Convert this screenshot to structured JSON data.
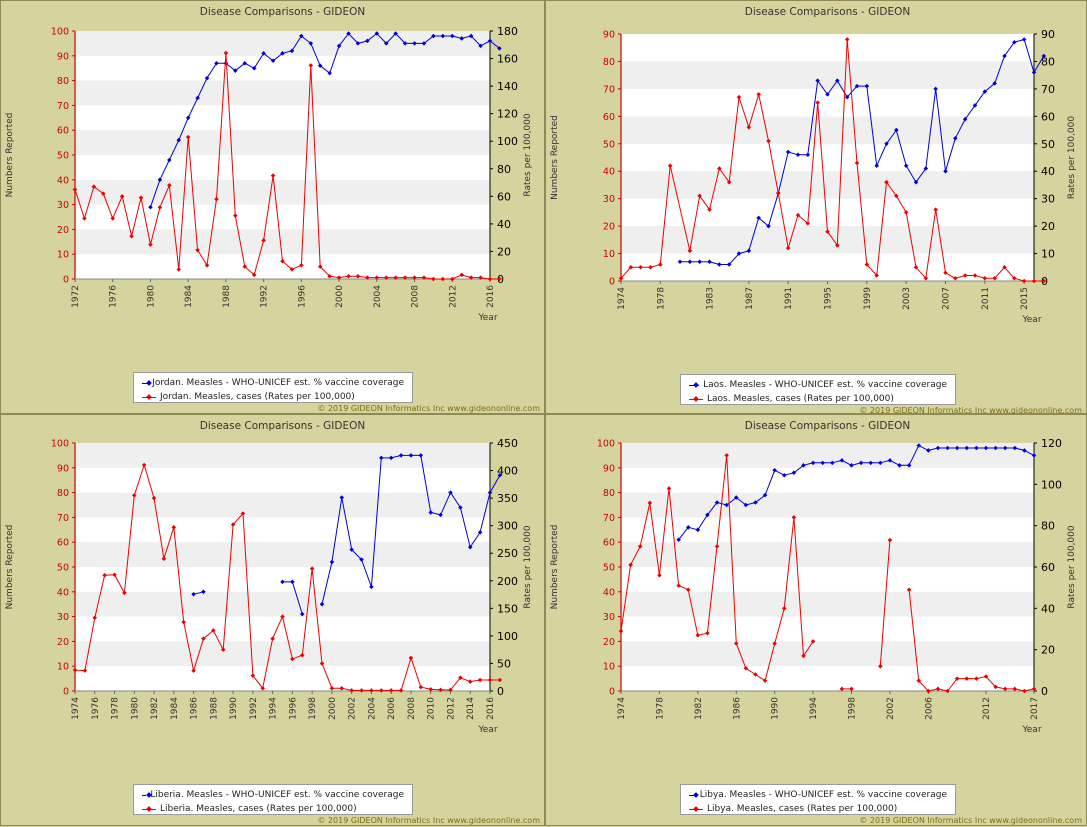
{
  "app": {
    "copyright": "© 2019 GIDEON Informatics Inc www.gideononline.com"
  },
  "colors": {
    "coverage": "#0000dd",
    "cases": "#ee0000",
    "grid_band": "#efefef",
    "background": "#d6d49e"
  },
  "chart_data": [
    {
      "type": "line",
      "title": "Disease Comparisons - GIDEON",
      "xlabel": "Year",
      "ylabel": "Numbers Reported",
      "y2label": "Rates per 100,000",
      "xlim": [
        1972,
        2016
      ],
      "xticks": [
        "1972",
        "1976",
        "1980",
        "1984",
        "1988",
        "1992",
        "1996",
        "2000",
        "2004",
        "2008",
        "2012",
        "2016"
      ],
      "ylim": [
        0,
        100
      ],
      "yticks": [
        "0",
        "10",
        "20",
        "30",
        "40",
        "50",
        "60",
        "70",
        "80",
        "90",
        "100"
      ],
      "y2lim": [
        0,
        180
      ],
      "y2ticks": [
        "0",
        "20",
        "40",
        "60",
        "80",
        "100",
        "120",
        "140",
        "160",
        "180"
      ],
      "series": [
        {
          "name": "Jordan. Measles - WHO-UNICEF est. % vaccine coverage",
          "color": "#0000dd",
          "axis": "left",
          "x": [
            1980,
            1981,
            1982,
            1983,
            1984,
            1985,
            1986,
            1987,
            1988,
            1989,
            1990,
            1991,
            1992,
            1993,
            1994,
            1995,
            1996,
            1997,
            1998,
            1999,
            2000,
            2001,
            2002,
            2003,
            2004,
            2005,
            2006,
            2007,
            2008,
            2009,
            2010,
            2011,
            2012,
            2013,
            2014,
            2015,
            2016,
            2017
          ],
          "values": [
            29,
            40,
            48,
            56,
            65,
            73,
            81,
            87,
            87,
            84,
            87,
            85,
            91,
            88,
            91,
            92,
            98,
            95,
            86,
            83,
            94,
            99,
            95,
            96,
            99,
            95,
            99,
            95,
            95,
            95,
            98,
            98,
            98,
            97,
            98,
            94,
            96,
            93
          ]
        },
        {
          "name": "Jordan. Measles, cases (Rates per 100,000)",
          "color": "#ee0000",
          "axis": "right",
          "x": [
            1972,
            1973,
            1974,
            1975,
            1976,
            1977,
            1978,
            1979,
            1980,
            1981,
            1982,
            1983,
            1984,
            1985,
            1986,
            1987,
            1988,
            1989,
            1990,
            1991,
            1992,
            1993,
            1994,
            1995,
            1996,
            1997,
            1998,
            1999,
            2000,
            2001,
            2002,
            2003,
            2004,
            2005,
            2006,
            2007,
            2008,
            2009,
            2010,
            2011,
            2012,
            2013,
            2014,
            2015,
            2016,
            2017
          ],
          "values": [
            65,
            44,
            67,
            62,
            44,
            60,
            31,
            59,
            25,
            52,
            68,
            7,
            103,
            21,
            10,
            58,
            164,
            46,
            9,
            3,
            28,
            75,
            13,
            7,
            10,
            155,
            9,
            2,
            1,
            2,
            2,
            1,
            1,
            1,
            1,
            1,
            1,
            1,
            0,
            0,
            0,
            3,
            1,
            1,
            0,
            0
          ]
        }
      ]
    },
    {
      "type": "line",
      "title": "Disease Comparisons - GIDEON",
      "xlabel": "Year",
      "ylabel": "Numbers Reported",
      "y2label": "Rates per 100,000",
      "xlim": [
        1974,
        2016
      ],
      "xticks": [
        "1974",
        "1978",
        "1983",
        "1987",
        "1991",
        "1995",
        "1999",
        "2003",
        "2007",
        "2011",
        "2015"
      ],
      "ylim": [
        0,
        90
      ],
      "yticks": [
        "0",
        "10",
        "20",
        "30",
        "40",
        "50",
        "60",
        "70",
        "80",
        "90"
      ],
      "y2lim": [
        0,
        90
      ],
      "y2ticks": [
        "0",
        "10",
        "20",
        "30",
        "40",
        "50",
        "60",
        "70",
        "80",
        "90"
      ],
      "series": [
        {
          "name": "Laos. Measles - WHO-UNICEF est. % vaccine coverage",
          "color": "#0000dd",
          "axis": "left",
          "x": [
            1980,
            1981,
            1982,
            1983,
            1984,
            1985,
            1986,
            1987,
            1988,
            1989,
            1990,
            1991,
            1992,
            1993,
            1994,
            1995,
            1996,
            1997,
            1998,
            1999,
            2000,
            2001,
            2002,
            2003,
            2004,
            2005,
            2006,
            2007,
            2008,
            2009,
            2010,
            2011,
            2012,
            2013,
            2014,
            2015,
            2016,
            2017
          ],
          "values": [
            7,
            7,
            7,
            7,
            6,
            6,
            10,
            11,
            23,
            20,
            32,
            47,
            46,
            46,
            73,
            68,
            73,
            67,
            71,
            71,
            42,
            50,
            55,
            42,
            36,
            41,
            70,
            40,
            52,
            59,
            64,
            69,
            72,
            82,
            87,
            88,
            76,
            82
          ]
        },
        {
          "name": "Laos. Measles, cases (Rates per 100,000)",
          "color": "#ee0000",
          "axis": "right",
          "x": [
            1974,
            1975,
            1976,
            1977,
            1978,
            1979,
            1981,
            1982,
            1983,
            1984,
            1985,
            1986,
            1987,
            1988,
            1989,
            1990,
            1991,
            1992,
            1993,
            1994,
            1995,
            1996,
            1997,
            1998,
            1999,
            2000,
            2001,
            2002,
            2003,
            2004,
            2005,
            2006,
            2007,
            2008,
            2009,
            2010,
            2011,
            2012,
            2013,
            2014,
            2015,
            2016,
            2017
          ],
          "values": [
            1,
            5,
            5,
            5,
            6,
            42,
            11,
            31,
            26,
            41,
            36,
            67,
            56,
            68,
            51,
            32,
            12,
            24,
            21,
            65,
            18,
            13,
            88,
            43,
            6,
            2,
            36,
            31,
            25,
            5,
            1,
            26,
            3,
            1,
            2,
            2,
            1,
            1,
            5,
            1,
            0,
            0,
            0
          ]
        }
      ]
    },
    {
      "type": "line",
      "title": "Disease Comparisons - GIDEON",
      "xlabel": "Year",
      "ylabel": "Numbers Reported",
      "y2label": "Rates per 100,000",
      "xlim": [
        1974,
        2016
      ],
      "xticks": [
        "1974",
        "1978",
        "1982",
        "1986",
        "1990",
        "1994",
        "1998",
        "2002",
        "2006",
        "2010",
        "2014"
      ],
      "xticks_extra": [
        "1976",
        "1980",
        "1984",
        "1988",
        "1992",
        "1996",
        "2000",
        "2004",
        "2008",
        "2012",
        "2016"
      ],
      "ylim": [
        0,
        100
      ],
      "yticks": [
        "0",
        "10",
        "20",
        "30",
        "40",
        "50",
        "60",
        "70",
        "80",
        "90",
        "100"
      ],
      "y2lim": [
        0,
        450
      ],
      "y2ticks": [
        "0",
        "50",
        "100",
        "150",
        "200",
        "250",
        "300",
        "350",
        "400",
        "450"
      ],
      "series": [
        {
          "name": "Liberia. Measles - WHO-UNICEF est. % vaccine coverage",
          "color": "#0000dd",
          "axis": "left",
          "x": [
            1986,
            1987,
            1995,
            1996,
            1997,
            1999,
            2000,
            2001,
            2002,
            2003,
            2004,
            2005,
            2006,
            2007,
            2008,
            2009,
            2010,
            2011,
            2012,
            2013,
            2014,
            2015,
            2016,
            2017
          ],
          "segments": [
            [
              1986,
              1987
            ],
            [
              1995,
              1996,
              1997
            ],
            [
              1999,
              2000,
              2001,
              2002,
              2003,
              2004,
              2005,
              2006,
              2007,
              2008,
              2009,
              2010,
              2011,
              2012,
              2013,
              2014,
              2015,
              2016,
              2017
            ]
          ],
          "values": [
            39,
            40,
            44,
            44,
            31,
            35,
            52,
            78,
            57,
            53,
            42,
            94,
            94,
            95,
            95,
            95,
            72,
            71,
            80,
            74,
            58,
            64,
            80,
            87
          ]
        },
        {
          "name": "Liberia. Measles, cases (Rates per 100,000)",
          "color": "#ee0000",
          "axis": "right",
          "x": [
            1974,
            1975,
            1976,
            1977,
            1978,
            1979,
            1980,
            1981,
            1982,
            1983,
            1984,
            1985,
            1986,
            1987,
            1988,
            1989,
            1990,
            1991,
            1992,
            1993,
            1994,
            1995,
            1996,
            1997,
            1998,
            1999,
            2000,
            2001,
            2002,
            2003,
            2004,
            2005,
            2006,
            2007,
            2008,
            2009,
            2010,
            2011,
            2012,
            2013,
            2014,
            2015,
            2016,
            2017
          ],
          "values": [
            38,
            37,
            133,
            210,
            211,
            178,
            355,
            410,
            350,
            240,
            297,
            125,
            37,
            95,
            110,
            75,
            302,
            322,
            28,
            5,
            95,
            135,
            58,
            65,
            222,
            50,
            5,
            5,
            1,
            1,
            1,
            1,
            1,
            1,
            60,
            7,
            3,
            2,
            2,
            24,
            17,
            20,
            20,
            20
          ]
        }
      ]
    },
    {
      "type": "line",
      "title": "Disease Comparisons - GIDEON",
      "xlabel": "Year",
      "ylabel": "Numbers Reported",
      "y2label": "Rates per 100,000",
      "xlim": [
        1974,
        2017
      ],
      "xticks": [
        "1974",
        "1978",
        "1982",
        "1986",
        "1990",
        "1994",
        "1998",
        "2002",
        "2006",
        "2012",
        "2017"
      ],
      "ylim": [
        0,
        100
      ],
      "yticks": [
        "0",
        "10",
        "20",
        "30",
        "40",
        "50",
        "60",
        "70",
        "80",
        "90",
        "100"
      ],
      "y2lim": [
        0,
        120
      ],
      "y2ticks": [
        "0",
        "20",
        "40",
        "60",
        "80",
        "100",
        "120"
      ],
      "series": [
        {
          "name": "Libya. Measles - WHO-UNICEF est. % vaccine coverage",
          "color": "#0000dd",
          "axis": "left",
          "x": [
            1980,
            1981,
            1982,
            1983,
            1984,
            1985,
            1986,
            1987,
            1988,
            1989,
            1990,
            1991,
            1992,
            1993,
            1994,
            1995,
            1996,
            1997,
            1998,
            1999,
            2000,
            2001,
            2002,
            2003,
            2004,
            2005,
            2006,
            2007,
            2008,
            2009,
            2010,
            2011,
            2012,
            2013,
            2014,
            2015,
            2016,
            2017
          ],
          "values": [
            61,
            66,
            65,
            71,
            76,
            75,
            78,
            75,
            76,
            79,
            89,
            87,
            88,
            91,
            92,
            92,
            92,
            93,
            91,
            92,
            92,
            92,
            93,
            91,
            91,
            99,
            97,
            98,
            98,
            98,
            98,
            98,
            98,
            98,
            98,
            98,
            97,
            95
          ]
        },
        {
          "name": "Libya. Measles, cases (Rates per 100,000)",
          "color": "#ee0000",
          "axis": "right",
          "x": [
            1974,
            1975,
            1976,
            1977,
            1978,
            1979,
            1980,
            1981,
            1982,
            1983,
            1984,
            1985,
            1986,
            1987,
            1988,
            1989,
            1990,
            1991,
            1992,
            1993,
            1994,
            1997,
            1998,
            2001,
            2002,
            2004,
            2005,
            2006,
            2007,
            2008,
            2009,
            2010,
            2011,
            2012,
            2013,
            2014,
            2015,
            2016,
            2017
          ],
          "segments": [
            [
              1974,
              1975,
              1976,
              1977,
              1978,
              1979,
              1980,
              1981,
              1982,
              1983,
              1984,
              1985,
              1986,
              1987,
              1988,
              1989,
              1990,
              1991,
              1992,
              1993,
              1994
            ],
            [
              1997,
              1998
            ],
            [
              2001,
              2002
            ],
            [
              2004,
              2005,
              2006,
              2007,
              2008,
              2009,
              2010,
              2011,
              2012,
              2013,
              2014,
              2015,
              2016,
              2017
            ]
          ],
          "values": [
            29,
            61,
            70,
            91,
            56,
            98,
            51,
            49,
            27,
            28,
            70,
            114,
            23,
            11,
            8,
            5,
            23,
            40,
            84,
            17,
            24,
            1,
            1,
            12,
            73,
            49,
            5,
            0,
            1,
            0,
            6,
            6,
            6,
            7,
            2,
            1,
            1,
            0,
            1
          ]
        }
      ]
    }
  ]
}
